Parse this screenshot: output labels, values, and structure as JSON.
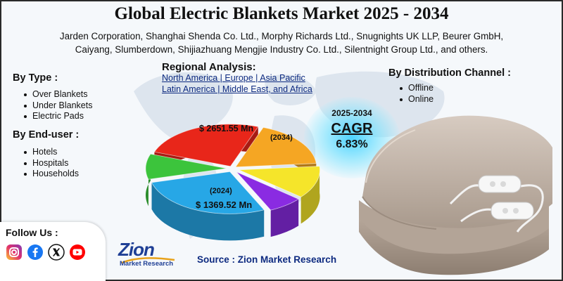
{
  "title": "Global Electric Blankets Market 2025 - 2034",
  "key_players": [
    "Jarden Corporation, Shanghai Shenda Co. Ltd., Morphy Richards Ltd., Snugnights UK LLP, Beurer GmbH,",
    "Caiyang, Slumberdown, Shijiazhuang Mengjie Industry Co. Ltd., Silentnight Group Ltd., and others."
  ],
  "by_type": {
    "heading": "By Type :",
    "items": [
      "Over Blankets",
      "Under Blankets",
      "Electric Pads"
    ]
  },
  "by_end_user": {
    "heading": "By End-user :",
    "items": [
      "Hotels",
      "Hospitals",
      "Households"
    ]
  },
  "regional": {
    "heading": "Regional Analysis:",
    "lines": [
      "North America | Europe | Asia Pacific",
      "Latin America | Middle East, and Africa"
    ]
  },
  "by_distribution": {
    "heading": "By Distribution Channel :",
    "items": [
      "Offline",
      "Online"
    ]
  },
  "cagr": {
    "period": "2025-2034",
    "label": "CAGR",
    "value": "6.83%"
  },
  "market": {
    "value_2034": "$ 2651.55 Mn",
    "year_2034": "(2034)",
    "value_2024": "$ 1369.52 Mn",
    "year_2024": "(2024)"
  },
  "pie_colors": [
    "#e8261a",
    "#f5a623",
    "#f5e52a",
    "#8a2be2",
    "#27a7e6",
    "#3cc43c"
  ],
  "follow": {
    "heading": "Follow Us :",
    "icons": [
      "instagram-icon",
      "facebook-icon",
      "x-icon",
      "youtube-icon"
    ]
  },
  "logo": {
    "main": "Zion",
    "sub": "Market Research"
  },
  "source": "Source : Zion Market Research"
}
